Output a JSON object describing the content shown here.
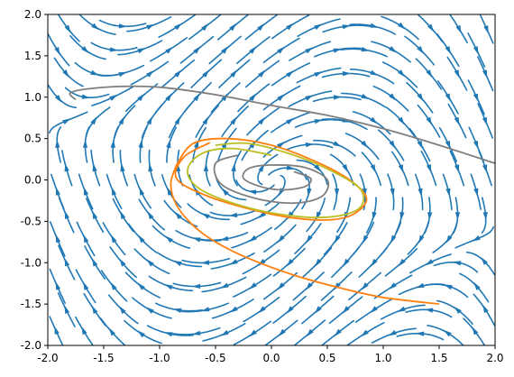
{
  "chart_data": {
    "type": "streamplot",
    "title": "",
    "xlabel": "",
    "ylabel": "",
    "xlim": [
      -2.0,
      2.0
    ],
    "ylim": [
      -2.0,
      2.0
    ],
    "xticks": [
      "-2.0",
      "-1.5",
      "-1.0",
      "-0.5",
      "0.0",
      "0.5",
      "1.0",
      "1.5",
      "2.0"
    ],
    "yticks": [
      "-2.0",
      "-1.5",
      "-1.0",
      "-0.5",
      "0.0",
      "0.5",
      "1.0",
      "1.5",
      "2.0"
    ],
    "grid": false,
    "legend": false,
    "stream_color": "#1f77b4",
    "field_model": "Van der Pol type oscillator: dx/dt = y, dy/dt = mu*(1 - x^2)*y - x, shown with a linear shear",
    "series": [
      {
        "color": "#7f7f7f",
        "points": [
          [
            -1.75,
            0.97
          ],
          [
            -1.8,
            1.05
          ],
          [
            -1.65,
            1.1
          ],
          [
            -1.35,
            1.13
          ],
          [
            -1.0,
            1.12
          ],
          [
            -0.5,
            1.03
          ],
          [
            0.0,
            0.9
          ],
          [
            0.5,
            0.78
          ],
          [
            1.0,
            0.62
          ],
          [
            1.5,
            0.42
          ],
          [
            2.0,
            0.2
          ]
        ]
      },
      {
        "color": "#ff7f0e",
        "points": [
          [
            -0.85,
            0.18
          ],
          [
            -0.9,
            -0.05
          ],
          [
            -0.85,
            -0.3
          ],
          [
            -0.7,
            -0.55
          ],
          [
            -0.5,
            -0.75
          ],
          [
            -0.2,
            -0.95
          ],
          [
            0.2,
            -1.15
          ],
          [
            0.6,
            -1.3
          ],
          [
            1.0,
            -1.42
          ],
          [
            1.5,
            -1.5
          ]
        ]
      },
      {
        "color": "#ff7f0e",
        "points": [
          [
            -0.85,
            0.18
          ],
          [
            -0.7,
            0.44
          ],
          [
            -0.4,
            0.5
          ],
          [
            0.0,
            0.42
          ],
          [
            0.4,
            0.22
          ],
          [
            0.7,
            0.0
          ],
          [
            0.85,
            -0.22
          ],
          [
            0.75,
            -0.4
          ],
          [
            0.55,
            -0.48
          ],
          [
            0.2,
            -0.46
          ],
          [
            -0.2,
            -0.35
          ],
          [
            -0.6,
            -0.18
          ],
          [
            -0.85,
            0.02
          ],
          [
            -0.78,
            0.28
          ],
          [
            -0.55,
            0.45
          ]
        ]
      },
      {
        "color": "#bcbd22",
        "points": [
          [
            -0.5,
            0.42
          ],
          [
            -0.2,
            0.44
          ],
          [
            0.2,
            0.3
          ],
          [
            0.55,
            0.1
          ],
          [
            0.8,
            -0.12
          ],
          [
            0.78,
            -0.35
          ],
          [
            0.5,
            -0.45
          ],
          [
            0.1,
            -0.42
          ],
          [
            -0.3,
            -0.3
          ],
          [
            -0.65,
            -0.1
          ],
          [
            -0.75,
            0.12
          ],
          [
            -0.62,
            0.32
          ],
          [
            -0.35,
            0.38
          ],
          [
            0.0,
            0.3
          ]
        ]
      },
      {
        "color": "#7f7f7f",
        "points": [
          [
            0.2,
            0.1
          ],
          [
            0.35,
            0.02
          ],
          [
            0.3,
            -0.08
          ],
          [
            0.1,
            -0.12
          ],
          [
            -0.1,
            -0.08
          ],
          [
            -0.25,
            0.02
          ],
          [
            -0.2,
            0.14
          ],
          [
            0.0,
            0.18
          ],
          [
            0.3,
            0.15
          ],
          [
            0.5,
            0.0
          ],
          [
            0.45,
            -0.2
          ],
          [
            0.2,
            -0.28
          ],
          [
            -0.15,
            -0.22
          ],
          [
            -0.45,
            -0.05
          ],
          [
            -0.5,
            0.2
          ],
          [
            -0.3,
            0.3
          ]
        ]
      }
    ]
  }
}
